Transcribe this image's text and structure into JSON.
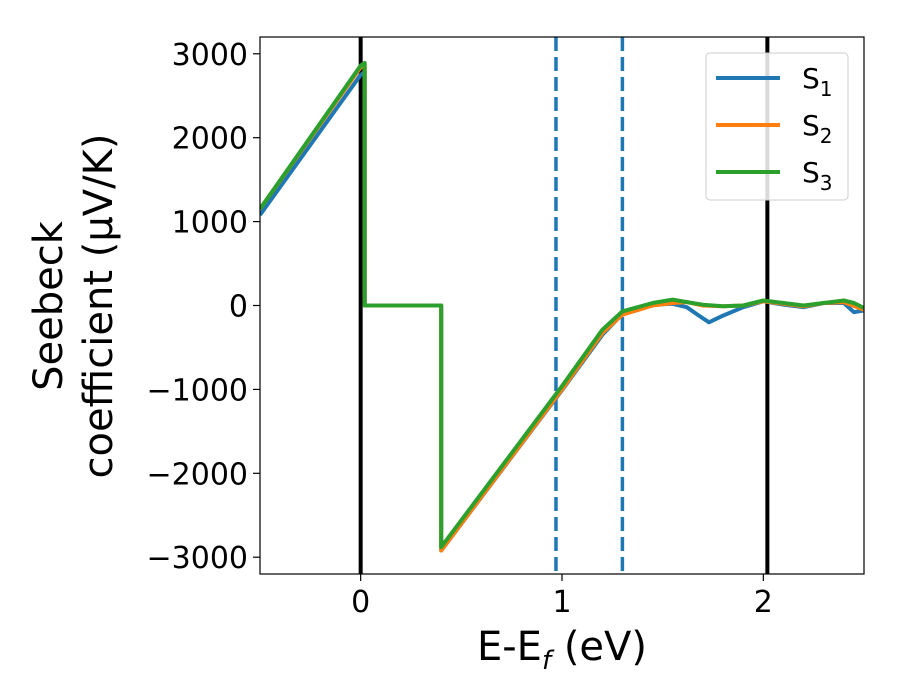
{
  "chart_data": {
    "type": "line",
    "title": "",
    "xlabel": "E-E",
    "xlabel_sub": "f",
    "xlabel_unit": " (eV)",
    "ylabel_line1": "Seebeck",
    "ylabel_line2": "coefficient  (μV/K)",
    "xlim": [
      -0.5,
      2.5
    ],
    "ylim": [
      -3200,
      3200
    ],
    "xticks": [
      0,
      1,
      2
    ],
    "xtick_labels": [
      "0",
      "1",
      "2"
    ],
    "yticks": [
      3000,
      2000,
      1000,
      0,
      -1000,
      -2000,
      -3000
    ],
    "ytick_labels": [
      "3000",
      "2000",
      "1000",
      "0",
      "−1000",
      "−2000",
      "−3000"
    ],
    "grid": false,
    "legend_position": "top-right",
    "vlines": [
      {
        "x": 0,
        "style": "solid",
        "color": "#000000"
      },
      {
        "x": 2.02,
        "style": "solid",
        "color": "#000000"
      },
      {
        "x": 0.97,
        "style": "dashed",
        "color": "#1f77b4"
      },
      {
        "x": 1.3,
        "style": "dashed",
        "color": "#1f77b4"
      }
    ],
    "series": [
      {
        "name": "S",
        "subscript": "1",
        "color": "#1f77b4",
        "x": [
          -0.5,
          0.0,
          0.02,
          0.02,
          0.4,
          0.4,
          1.0,
          1.2,
          1.3,
          1.45,
          1.55,
          1.62,
          1.68,
          1.73,
          1.8,
          1.9,
          2.0,
          2.1,
          2.2,
          2.3,
          2.4,
          2.45,
          2.5
        ],
        "y": [
          1080,
          2750,
          2780,
          0,
          0,
          -2920,
          -1010,
          -350,
          -100,
          10,
          20,
          -20,
          -120,
          -200,
          -120,
          -20,
          50,
          10,
          -20,
          30,
          30,
          -80,
          -60
        ]
      },
      {
        "name": "S",
        "subscript": "2",
        "color": "#ff7f0e",
        "x": [
          -0.5,
          0.0,
          0.02,
          0.02,
          0.4,
          0.4,
          1.0,
          1.2,
          1.3,
          1.45,
          1.55,
          1.62,
          1.7,
          1.8,
          1.9,
          2.0,
          2.1,
          2.2,
          2.3,
          2.4,
          2.5
        ],
        "y": [
          1150,
          2840,
          2870,
          0,
          0,
          -2920,
          -1000,
          -330,
          -110,
          0,
          30,
          40,
          0,
          -10,
          0,
          50,
          20,
          -10,
          30,
          40,
          -50
        ]
      },
      {
        "name": "S",
        "subscript": "3",
        "color": "#2ca02c",
        "x": [
          -0.5,
          0.0,
          0.02,
          0.02,
          0.4,
          0.4,
          1.0,
          1.2,
          1.3,
          1.45,
          1.55,
          1.62,
          1.7,
          1.8,
          1.9,
          2.0,
          2.1,
          2.2,
          2.3,
          2.4,
          2.45,
          2.5
        ],
        "y": [
          1150,
          2860,
          2890,
          0,
          0,
          -2880,
          -960,
          -290,
          -70,
          30,
          70,
          40,
          10,
          -10,
          0,
          60,
          30,
          0,
          30,
          60,
          30,
          -30
        ]
      }
    ]
  }
}
